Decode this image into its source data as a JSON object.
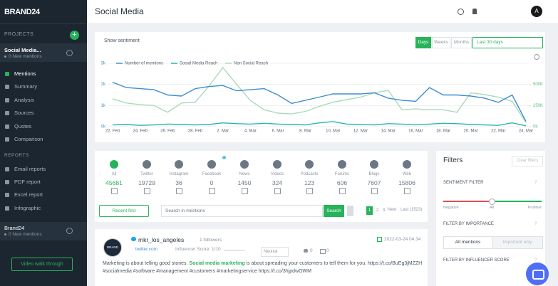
{
  "sidebar": {
    "brand": "BRAND24",
    "projects_label": "PROJECTS",
    "project": {
      "name": "Social Media...",
      "sub": "0 New mentions"
    },
    "menu": [
      "Mentions",
      "Summary",
      "Analysis",
      "Sources",
      "Quotes",
      "Comparison"
    ],
    "reports_label": "REPORTS",
    "reports": [
      "Email reports",
      "PDF report",
      "Excel report",
      "Infographic"
    ],
    "project2": {
      "name": "Brand24",
      "sub": "0 New mentions"
    },
    "video_button": "Video walk through"
  },
  "header": {
    "title": "Social Media",
    "avatar": "A"
  },
  "toolbar": {
    "sentiment": "Show sentiment",
    "periods": [
      "Days",
      "Weeks",
      "Months"
    ],
    "range": "Last 30 days"
  },
  "chart_data": {
    "type": "line",
    "categories": [
      "22. Feb",
      null,
      "24. Feb",
      null,
      "26. Feb",
      null,
      "28. Feb",
      null,
      "2. Mar",
      null,
      "4. Mar",
      null,
      "6. Mar",
      null,
      "8. Mar",
      null,
      "10. Mar",
      null,
      "12. Mar",
      null,
      "14. Mar",
      null,
      "16. Mar",
      null,
      "18. Mar",
      null,
      "20. Mar",
      null,
      "22. Mar",
      null,
      "24. Mar"
    ],
    "series": [
      {
        "name": "Number of mentions",
        "color": "#3d8fd1",
        "values": [
          2100,
          1850,
          1800,
          1750,
          1500,
          1450,
          1800,
          1900,
          1950,
          1700,
          1750,
          1800,
          1500,
          1100,
          1250,
          1400,
          1550,
          1550,
          1550,
          1600,
          1350,
          1250,
          1200,
          1850,
          1500,
          1500,
          1450,
          1350,
          1150,
          1500,
          250
        ]
      },
      {
        "name": "Social Media Reach",
        "color": "#2bb3b1",
        "axis": "y2",
        "values": [
          20000,
          25000,
          15000,
          20000,
          30000,
          25000,
          20000,
          25000,
          45000,
          35000,
          30000,
          40000,
          30000,
          25000,
          20000,
          45000,
          60000,
          30000,
          25000,
          20000,
          35000,
          30000,
          20000,
          30000,
          40000,
          35000,
          25000,
          20000,
          15000,
          45000,
          10000
        ]
      },
      {
        "name": "Non Social Reach",
        "color": "#a8dbb8",
        "axis": "y2",
        "values": [
          330000,
          280000,
          260000,
          250000,
          170000,
          280000,
          290000,
          480000,
          700000,
          500000,
          310000,
          200000,
          160000,
          150000,
          180000,
          240000,
          290000,
          320000,
          350000,
          400000,
          430000,
          200000,
          210000,
          200000,
          200000,
          170000,
          400000,
          380000,
          350000,
          300000,
          50000
        ]
      }
    ],
    "ylim": [
      0,
      3000
    ],
    "yticks": [
      {
        "value": 0,
        "label": "0k"
      },
      {
        "value": 1000,
        "label": "1k"
      },
      {
        "value": 2000,
        "label": "2k"
      },
      {
        "value": 3000,
        "label": "3k"
      }
    ],
    "y2lim": [
      0,
      750000
    ],
    "y2ticks": [
      {
        "value": 0,
        "label": "0k"
      },
      {
        "value": 250000,
        "label": "250K"
      },
      {
        "value": 500000,
        "label": "500K"
      }
    ],
    "grid": true
  },
  "sources": {
    "labels": [
      "All",
      "Twitter",
      "Instagram",
      "Facebook",
      "News",
      "Videos",
      "Podcasts",
      "Forums",
      "Blogs",
      "Web"
    ],
    "values": [
      45681,
      19729,
      36,
      0,
      1450,
      324,
      123,
      606,
      7607,
      15806
    ]
  },
  "search": {
    "sort": "Recent first",
    "placeholder": "Search in mentions",
    "button": "Search",
    "pages": [
      1,
      2,
      3
    ],
    "next": "Next",
    "last": "Last (1523)"
  },
  "mention": {
    "avatar": "BRAND",
    "author": "mkr_los_angeles",
    "followers": "1 followers",
    "source": "twitter.com",
    "influencer": "Influencer Score: 1/10",
    "sentiment": "Neutral",
    "likes": 0,
    "comments": 0,
    "date": "2022-03-24 04:34",
    "text": [
      "Marketing is about telling good stories. ",
      "Social media marketing",
      " is about spreading your customers to tell them for you. https://t.co/BuEg3jMZZH"
    ],
    "text2": "#socialmedia #software #management #customers #marketingservice https://t.co/3hjpdwOWM"
  },
  "filters": {
    "title": "Filters",
    "clear": "Clear filters",
    "sentiment_label": "SENTIMENT FILTER",
    "sentiment_options": [
      "Negative",
      "All",
      "Positive"
    ],
    "importance_label": "FILTER BY IMPORTANCE",
    "importance_options": [
      "All mentions",
      "Important only"
    ],
    "influencer_label": "FILTER BY INFLUENCER SCORE"
  }
}
